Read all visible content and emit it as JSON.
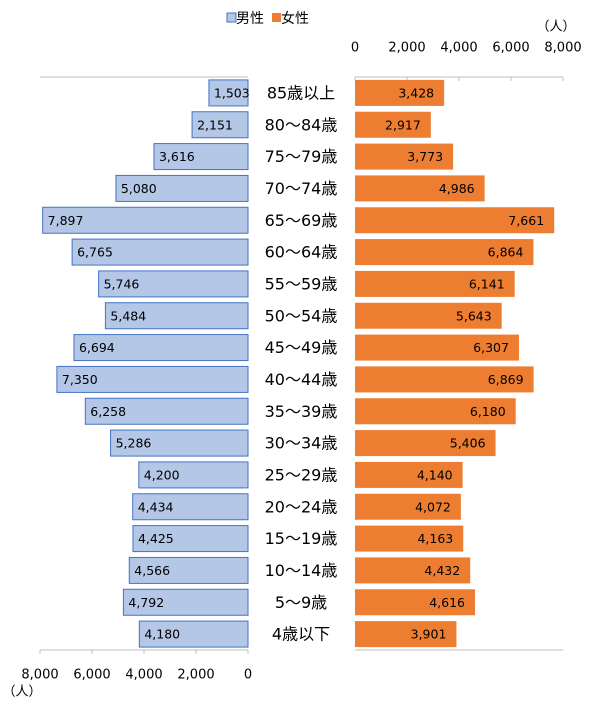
{
  "chart_data": {
    "type": "pyramid",
    "categories": [
      "85歳以上",
      "80〜84歳",
      "75〜79歳",
      "70〜74歳",
      "65〜69歳",
      "60〜64歳",
      "55〜59歳",
      "50〜54歳",
      "45〜49歳",
      "40〜44歳",
      "35〜39歳",
      "30〜34歳",
      "25〜29歳",
      "20〜24歳",
      "15〜19歳",
      "10〜14歳",
      "5〜9歳",
      "4歳以下"
    ],
    "series": [
      {
        "name": "男性",
        "color": "#b4c7e7",
        "edge": "#4472c4",
        "values": [
          1503,
          2151,
          3616,
          5080,
          7897,
          6765,
          5746,
          5484,
          6694,
          7350,
          6258,
          5286,
          4200,
          4434,
          4425,
          4566,
          4792,
          4180
        ],
        "value_labels": [
          "1,503",
          "2,151",
          "3,616",
          "5,080",
          "7,897",
          "6,765",
          "5,746",
          "5,484",
          "6,694",
          "7,350",
          "6,258",
          "5,286",
          "4,200",
          "4,434",
          "4,425",
          "4,566",
          "4,792",
          "4,180"
        ]
      },
      {
        "name": "女性",
        "color": "#ed7d31",
        "values": [
          3428,
          2917,
          3773,
          4986,
          7661,
          6864,
          6141,
          5643,
          6307,
          6869,
          6180,
          5406,
          4140,
          4072,
          4163,
          4432,
          4616,
          3901
        ],
        "value_labels": [
          "3,428",
          "2,917",
          "3,773",
          "4,986",
          "7,661",
          "6,864",
          "6,141",
          "5,643",
          "6,307",
          "6,869",
          "6,180",
          "5,406",
          "4,140",
          "4,072",
          "4,163",
          "4,432",
          "4,616",
          "3,901"
        ]
      }
    ],
    "xlim": [
      0,
      8000
    ],
    "xticks": [
      0,
      {
        "value": 2000,
        "label": "2,000"
      },
      {
        "value": 4000,
        "label": "4,000"
      },
      {
        "value": 6000,
        "label": "6,000"
      },
      {
        "value": 8000,
        "label": "8,000"
      }
    ],
    "unit_label": "（人）"
  }
}
